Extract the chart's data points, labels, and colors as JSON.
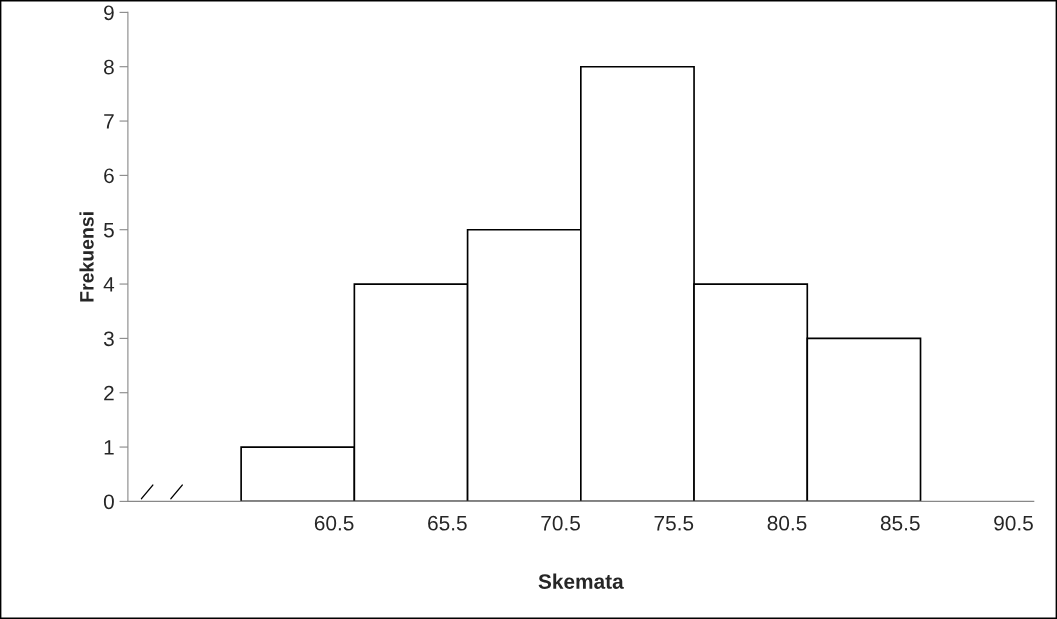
{
  "chart_data": {
    "type": "bar",
    "xlabel": "Skemata",
    "ylabel": "Frekuensi",
    "categories": [
      null,
      "60.5",
      "65.5",
      "70.5",
      "75.5",
      "80.5",
      "85.5",
      "90.5"
    ],
    "values": [
      null,
      1,
      4,
      5,
      8,
      4,
      3,
      null
    ],
    "color": "#ffffff",
    "ylim": [
      0,
      9
    ],
    "yticks": [
      0,
      1,
      2,
      3,
      4,
      5,
      6,
      7,
      8,
      9
    ],
    "grid": false,
    "legend": false
  }
}
